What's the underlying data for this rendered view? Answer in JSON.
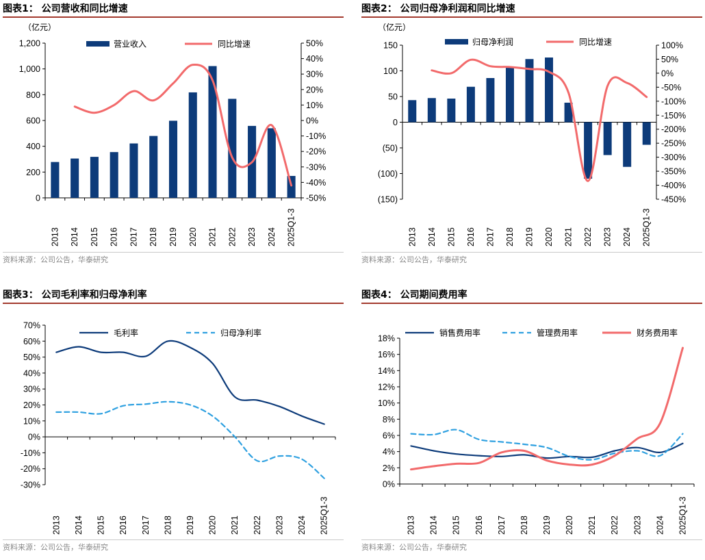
{
  "colors": {
    "bar": "#0d3b7a",
    "red": "#f26a6b",
    "navy": "#0d3b7a",
    "blue_dash": "#2ea0e0",
    "title_rule": "#a33a2e"
  },
  "source": "资料来源：公司公告，华泰研究",
  "categories": [
    "2013",
    "2014",
    "2015",
    "2016",
    "2017",
    "2018",
    "2019",
    "2020",
    "2021",
    "2022",
    "2023",
    "2024",
    "2025Q1-3"
  ],
  "chart_data": [
    {
      "type": "bar",
      "title": "图表1：  公司营收和同比增速",
      "unit_label": "（亿元）",
      "yleft_ticks": [
        "0",
        "200",
        "400",
        "600",
        "800",
        "1,000",
        "1,200"
      ],
      "yleft_lim": [
        0,
        1200
      ],
      "yright_ticks": [
        "-50%",
        "-40%",
        "-30%",
        "-20%",
        "-10%",
        "0%",
        "10%",
        "20%",
        "30%",
        "40%",
        "50%"
      ],
      "yright_lim": [
        -50,
        50
      ],
      "series": [
        {
          "name": "营业收入",
          "kind": "bar",
          "axis": "left",
          "values": [
            278,
            305,
            318,
            355,
            422,
            480,
            598,
            818,
            1022,
            768,
            558,
            540,
            170
          ]
        },
        {
          "name": "同比增速",
          "kind": "line",
          "axis": "right",
          "values": [
            null,
            9,
            5,
            10,
            19,
            13,
            24,
            36,
            26,
            -24,
            -27,
            -3,
            -42
          ]
        }
      ]
    },
    {
      "type": "bar",
      "title": "图表2：  公司归母净利润和同比增速",
      "unit_label": "（亿元）",
      "yleft_ticks": [
        "(150)",
        "(100)",
        "(50)",
        "0",
        "50",
        "100",
        "150"
      ],
      "yleft_lim": [
        -150,
        150
      ],
      "yright_ticks": [
        "-450%",
        "-400%",
        "-350%",
        "-300%",
        "-250%",
        "-200%",
        "-150%",
        "-100%",
        "-50%",
        "0%",
        "50%",
        "100%"
      ],
      "yright_lim": [
        -450,
        100
      ],
      "series": [
        {
          "name": "归母净利润",
          "kind": "bar",
          "axis": "left",
          "values": [
            43,
            47,
            46,
            69,
            86,
            107,
            123,
            126,
            38,
            -110,
            -64,
            -87,
            -44
          ]
        },
        {
          "name": "同比增速",
          "kind": "line",
          "axis": "right",
          "values": [
            null,
            10,
            0,
            48,
            25,
            22,
            15,
            5,
            -70,
            -385,
            -45,
            -35,
            -85
          ]
        }
      ]
    },
    {
      "type": "line",
      "title": "图表3：  公司毛利率和归母净利率",
      "y_ticks": [
        "-30%",
        "-20%",
        "-10%",
        "0%",
        "10%",
        "20%",
        "30%",
        "40%",
        "50%",
        "60%",
        "70%"
      ],
      "ylim": [
        -30,
        70
      ],
      "series": [
        {
          "name": "毛利率",
          "style": "solid",
          "values": [
            53,
            56.5,
            53,
            53,
            50.5,
            60,
            56,
            46,
            25,
            23,
            19,
            13,
            8
          ]
        },
        {
          "name": "归母净利率",
          "style": "dashed",
          "values": [
            15.5,
            15.5,
            14.5,
            19.5,
            20.5,
            22,
            20,
            13,
            0,
            -15,
            -12,
            -14,
            -26
          ]
        }
      ]
    },
    {
      "type": "line",
      "title": "图表4：  公司期间费用率",
      "y_ticks": [
        "0%",
        "2%",
        "4%",
        "6%",
        "8%",
        "10%",
        "12%",
        "14%",
        "16%",
        "18%"
      ],
      "ylim": [
        0,
        18
      ],
      "series": [
        {
          "name": "销售费用率",
          "style": "solid-navy",
          "values": [
            4.7,
            4.1,
            3.7,
            3.5,
            3.4,
            3.6,
            3.2,
            3.4,
            3.3,
            4.1,
            4.5,
            3.9,
            5.0
          ]
        },
        {
          "name": "管理费用率",
          "style": "dashed",
          "values": [
            6.2,
            6.1,
            6.7,
            5.5,
            5.2,
            4.9,
            4.5,
            3.4,
            3.0,
            3.8,
            4.1,
            3.5,
            6.2
          ]
        },
        {
          "name": "财务费用率",
          "style": "solid-red",
          "values": [
            1.8,
            2.2,
            2.5,
            2.6,
            3.9,
            4.1,
            2.9,
            2.4,
            2.4,
            3.5,
            5.6,
            7.5,
            16.8
          ]
        }
      ]
    }
  ]
}
